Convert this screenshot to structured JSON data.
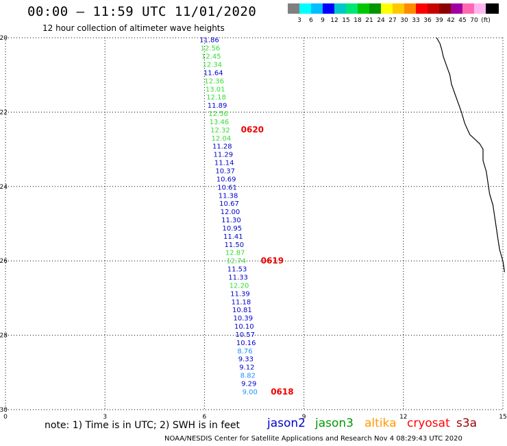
{
  "header": {
    "title": "00:00 – 11:59 UTC 11/01/2020",
    "subtitle": "12 hour collection of altimeter wave heights"
  },
  "scale": {
    "colors": [
      "#808080",
      "#00ffff",
      "#00bfff",
      "#0000ff",
      "#00c8c8",
      "#00e676",
      "#00c800",
      "#009600",
      "#ffff00",
      "#ffc800",
      "#ff8c00",
      "#ff0000",
      "#c80000",
      "#8b0000",
      "#a000a0",
      "#ff69b4",
      "#ffb6f0",
      "#000000"
    ],
    "labels": [
      "3",
      "6",
      "9",
      "12",
      "15",
      "18",
      "21",
      "24",
      "27",
      "30",
      "33",
      "36",
      "39",
      "42",
      "45",
      "70",
      "(ft)"
    ]
  },
  "axes": {
    "x_ticks": [
      "0",
      "3",
      "6",
      "9",
      "12",
      "15"
    ],
    "y_ticks": [
      "-20",
      "-22",
      "-24",
      "-26",
      "-28",
      "-30"
    ]
  },
  "wave_heights": [
    {
      "lat": -20.05,
      "lon": 5.85,
      "v": "11.86",
      "c": "#0000cc"
    },
    {
      "lat": -20.27,
      "lon": 5.88,
      "v": "12.56",
      "c": "#33dd33"
    },
    {
      "lat": -20.49,
      "lon": 5.91,
      "v": "12.45",
      "c": "#33dd33"
    },
    {
      "lat": -20.71,
      "lon": 5.94,
      "v": "12.34",
      "c": "#33dd33"
    },
    {
      "lat": -20.93,
      "lon": 5.97,
      "v": "11.64",
      "c": "#0000cc"
    },
    {
      "lat": -21.15,
      "lon": 6.0,
      "v": "12.36",
      "c": "#33dd33"
    },
    {
      "lat": -21.37,
      "lon": 6.03,
      "v": "13.01",
      "c": "#33dd33"
    },
    {
      "lat": -21.59,
      "lon": 6.06,
      "v": "12.18",
      "c": "#33dd33"
    },
    {
      "lat": -21.81,
      "lon": 6.09,
      "v": "11.89",
      "c": "#0000cc"
    },
    {
      "lat": -22.03,
      "lon": 6.12,
      "v": "12.56",
      "c": "#33dd33"
    },
    {
      "lat": -22.25,
      "lon": 6.15,
      "v": "13.46",
      "c": "#33dd33"
    },
    {
      "lat": -22.47,
      "lon": 6.18,
      "v": "12.32",
      "c": "#33dd33"
    },
    {
      "lat": -22.69,
      "lon": 6.21,
      "v": "12.04",
      "c": "#33dd33"
    },
    {
      "lat": -22.91,
      "lon": 6.24,
      "v": "11.28",
      "c": "#0000cc"
    },
    {
      "lat": -23.13,
      "lon": 6.27,
      "v": "11.29",
      "c": "#0000cc"
    },
    {
      "lat": -23.35,
      "lon": 6.3,
      "v": "11.14",
      "c": "#0000cc"
    },
    {
      "lat": -23.57,
      "lon": 6.33,
      "v": "10.37",
      "c": "#0000cc"
    },
    {
      "lat": -23.79,
      "lon": 6.36,
      "v": "10.69",
      "c": "#0000cc"
    },
    {
      "lat": -24.01,
      "lon": 6.39,
      "v": "10.61",
      "c": "#0000cc"
    },
    {
      "lat": -24.23,
      "lon": 6.42,
      "v": "11.38",
      "c": "#0000cc"
    },
    {
      "lat": -24.45,
      "lon": 6.45,
      "v": "10.67",
      "c": "#0000cc"
    },
    {
      "lat": -24.67,
      "lon": 6.48,
      "v": "12.00",
      "c": "#0000cc"
    },
    {
      "lat": -24.89,
      "lon": 6.51,
      "v": "11.30",
      "c": "#0000cc"
    },
    {
      "lat": -25.11,
      "lon": 6.54,
      "v": "10.95",
      "c": "#0000cc"
    },
    {
      "lat": -25.33,
      "lon": 6.57,
      "v": "11.41",
      "c": "#0000cc"
    },
    {
      "lat": -25.55,
      "lon": 6.6,
      "v": "11.50",
      "c": "#0000cc"
    },
    {
      "lat": -25.77,
      "lon": 6.63,
      "v": "12.87",
      "c": "#33dd33"
    },
    {
      "lat": -25.99,
      "lon": 6.66,
      "v": "12.74",
      "c": "#33dd33"
    },
    {
      "lat": -26.21,
      "lon": 6.69,
      "v": "11.53",
      "c": "#0000cc"
    },
    {
      "lat": -26.43,
      "lon": 6.72,
      "v": "11.33",
      "c": "#0000cc"
    },
    {
      "lat": -26.65,
      "lon": 6.75,
      "v": "12.20",
      "c": "#33dd33"
    },
    {
      "lat": -26.87,
      "lon": 6.78,
      "v": "11.39",
      "c": "#0000cc"
    },
    {
      "lat": -27.09,
      "lon": 6.81,
      "v": "11.18",
      "c": "#0000cc"
    },
    {
      "lat": -27.31,
      "lon": 6.84,
      "v": "10.81",
      "c": "#0000cc"
    },
    {
      "lat": -27.53,
      "lon": 6.87,
      "v": "10.39",
      "c": "#0000cc"
    },
    {
      "lat": -27.75,
      "lon": 6.9,
      "v": "10.10",
      "c": "#0000cc"
    },
    {
      "lat": -27.97,
      "lon": 6.93,
      "v": "10.57",
      "c": "#0000cc"
    },
    {
      "lat": -28.19,
      "lon": 6.96,
      "v": "10.16",
      "c": "#0000cc"
    },
    {
      "lat": -28.41,
      "lon": 6.99,
      "v": "8.76",
      "c": "#1e90ff"
    },
    {
      "lat": -28.63,
      "lon": 7.02,
      "v": "9.33",
      "c": "#0000cc"
    },
    {
      "lat": -28.85,
      "lon": 7.05,
      "v": "9.12",
      "c": "#0000cc"
    },
    {
      "lat": -29.07,
      "lon": 7.08,
      "v": "8.82",
      "c": "#1e90ff"
    },
    {
      "lat": -29.29,
      "lon": 7.11,
      "v": "9.29",
      "c": "#0000cc"
    },
    {
      "lat": -29.51,
      "lon": 7.14,
      "v": "9.00",
      "c": "#1e90ff"
    }
  ],
  "time_labels": [
    {
      "lat": -22.45,
      "lon": 7.1,
      "t": "0620"
    },
    {
      "lat": -25.98,
      "lon": 7.7,
      "t": "0619"
    },
    {
      "lat": -29.5,
      "lon": 8.0,
      "t": "0618"
    }
  ],
  "coastline": [
    [
      -20.0,
      13.0
    ],
    [
      -20.15,
      13.1
    ],
    [
      -20.3,
      13.15
    ],
    [
      -20.5,
      13.2
    ],
    [
      -20.75,
      13.3
    ],
    [
      -21.0,
      13.4
    ],
    [
      -21.25,
      13.45
    ],
    [
      -21.5,
      13.55
    ],
    [
      -21.75,
      13.65
    ],
    [
      -22.0,
      13.75
    ],
    [
      -22.3,
      13.85
    ],
    [
      -22.6,
      14.0
    ],
    [
      -22.85,
      14.3
    ],
    [
      -23.0,
      14.4
    ],
    [
      -23.3,
      14.4
    ],
    [
      -23.6,
      14.5
    ],
    [
      -23.9,
      14.55
    ],
    [
      -24.2,
      14.6
    ],
    [
      -24.5,
      14.7
    ],
    [
      -24.8,
      14.75
    ],
    [
      -25.1,
      14.8
    ],
    [
      -25.4,
      14.85
    ],
    [
      -25.7,
      14.9
    ],
    [
      -26.0,
      15.0
    ],
    [
      -26.3,
      15.05
    ]
  ],
  "footer": {
    "note": "note: 1) Time is in UTC; 2) SWH is in feet",
    "satellites": [
      {
        "name": "jason2",
        "color": "#0000cc"
      },
      {
        "name": "jason3",
        "color": "#009900"
      },
      {
        "name": "altika",
        "color": "#ff9900"
      },
      {
        "name": "cryosat",
        "color": "#ff0000"
      },
      {
        "name": "s3a",
        "color": "#990000"
      }
    ],
    "credit": "NOAA/NESDIS Center for Satellite Applications and Research   Nov  4 08:29:43 UTC 2020"
  }
}
